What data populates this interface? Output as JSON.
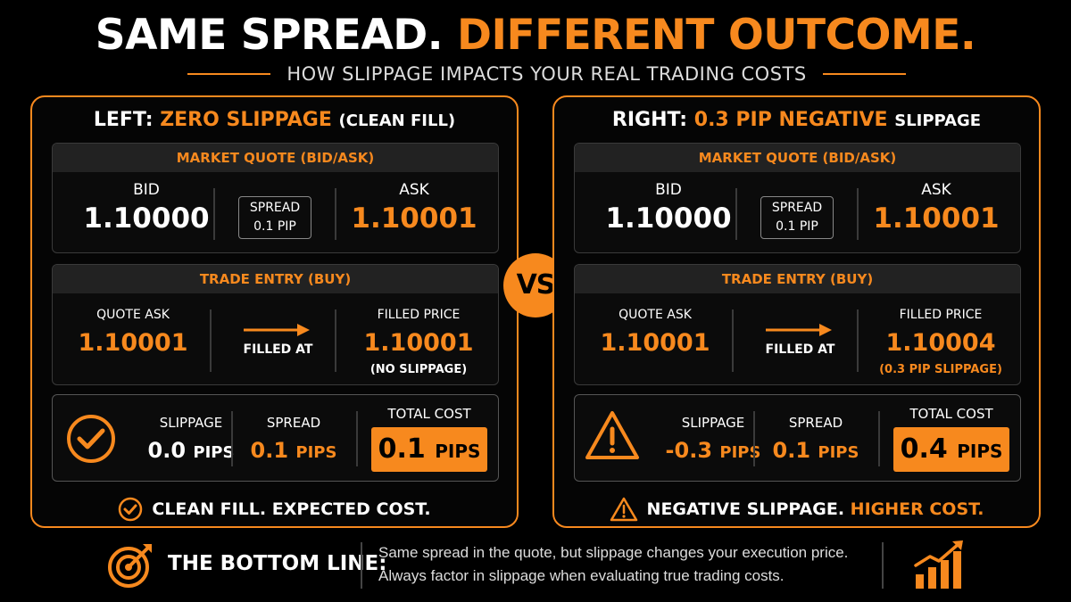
{
  "header": {
    "title_part1": "SAME SPREAD.",
    "title_part2": "DIFFERENT OUTCOME.",
    "subtitle": "HOW SLIPPAGE IMPACTS YOUR REAL TRADING COSTS"
  },
  "colors": {
    "accent": "#f7891e",
    "background": "#000000",
    "card": "#0b0b0b",
    "card_header": "#222222"
  },
  "vs_label": "VS",
  "left": {
    "title_prefix": "LEFT:",
    "title_highlight": "ZERO SLIPPAGE",
    "title_suffix": "(CLEAN FILL)",
    "quote": {
      "header": "MARKET QUOTE (BID/ASK)",
      "bid_label": "BID",
      "bid_value": "1.10000",
      "spread_label": "SPREAD",
      "spread_value": "0.1 PIP",
      "ask_label": "ASK",
      "ask_value": "1.10001"
    },
    "entry": {
      "header": "TRADE ENTRY (BUY)",
      "quote_ask_label": "QUOTE ASK",
      "quote_ask_value": "1.10001",
      "filled_at": "FILLED AT",
      "filled_label": "FILLED PRICE",
      "filled_value": "1.10001",
      "filled_note": "(NO SLIPPAGE)"
    },
    "cost": {
      "icon": "check-circle-icon",
      "slippage_label": "SLIPPAGE",
      "slippage_value": "0.0",
      "slippage_unit": "PIPS",
      "spread_label": "SPREAD",
      "spread_value": "0.1",
      "spread_unit": "PIPS",
      "total_label": "TOTAL COST",
      "total_value": "0.1",
      "total_unit": "PIPS"
    },
    "footer": {
      "icon": "check-circle-icon",
      "text": "CLEAN FILL. EXPECTED COST."
    }
  },
  "right": {
    "title_prefix": "RIGHT:",
    "title_highlight": "0.3 PIP NEGATIVE",
    "title_suffix": "SLIPPAGE",
    "quote": {
      "header": "MARKET QUOTE (BID/ASK)",
      "bid_label": "BID",
      "bid_value": "1.10000",
      "spread_label": "SPREAD",
      "spread_value": "0.1 PIP",
      "ask_label": "ASK",
      "ask_value": "1.10001"
    },
    "entry": {
      "header": "TRADE ENTRY (BUY)",
      "quote_ask_label": "QUOTE ASK",
      "quote_ask_value": "1.10001",
      "filled_at": "FILLED AT",
      "filled_label": "FILLED PRICE",
      "filled_value": "1.10004",
      "filled_note": "(0.3 PIP SLIPPAGE)"
    },
    "cost": {
      "icon": "warning-triangle-icon",
      "slippage_label": "SLIPPAGE",
      "slippage_value": "-0.3",
      "slippage_unit": "PIPS",
      "spread_label": "SPREAD",
      "spread_value": "0.1",
      "spread_unit": "PIPS",
      "total_label": "TOTAL COST",
      "total_value": "0.4",
      "total_unit": "PIPS"
    },
    "footer": {
      "icon": "warning-triangle-icon",
      "text_part1": "NEGATIVE SLIPPAGE.",
      "text_part2": "HIGHER COST."
    }
  },
  "bottom_line": {
    "icon": "target-icon",
    "title": "THE BOTTOM LINE:",
    "line1": "Same spread in the quote, but slippage changes your execution price.",
    "line2": "Always factor in slippage when evaluating true trading costs.",
    "chart_icon": "rising-bar-chart-icon"
  }
}
